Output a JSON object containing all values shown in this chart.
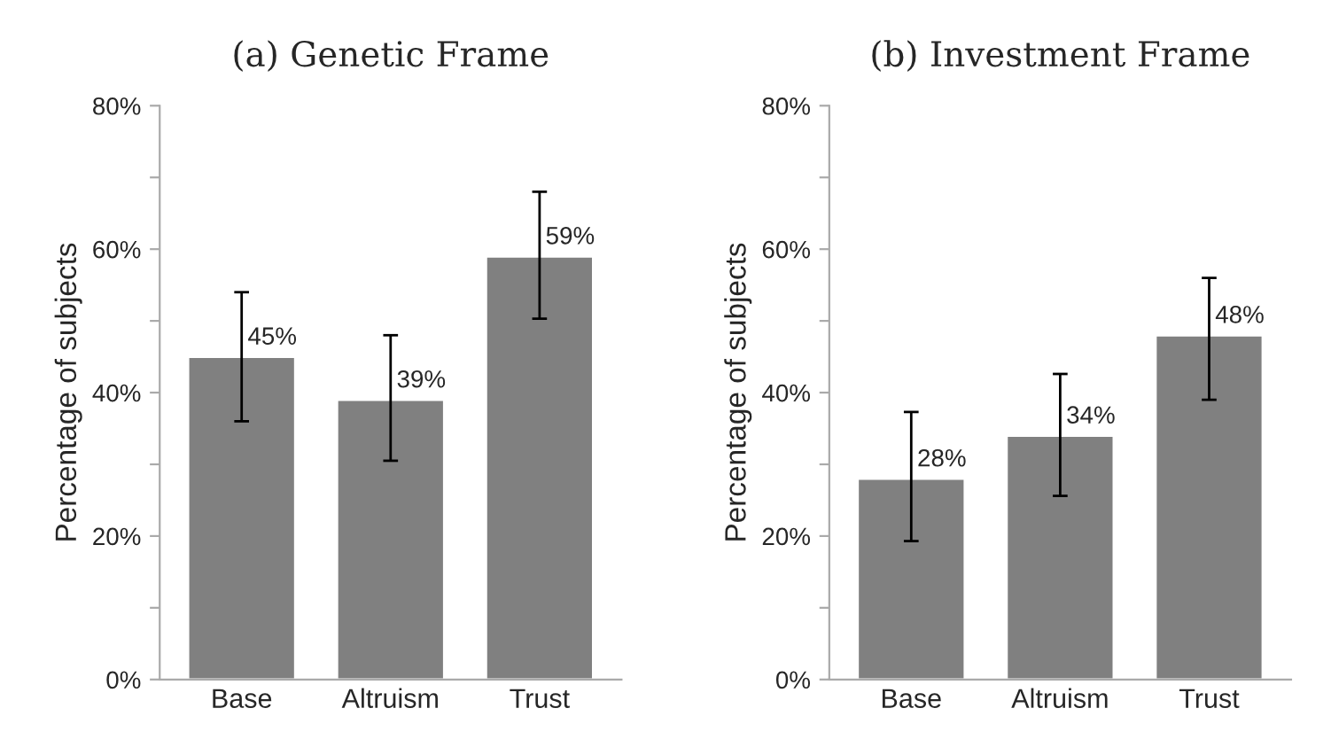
{
  "chart_data": [
    {
      "type": "bar",
      "title": "(a) Genetic Frame",
      "ylabel": "Percentage of subjects",
      "categories": [
        "Base",
        "Altruism",
        "Trust"
      ],
      "color": "#808080",
      "values": [
        45,
        39,
        59
      ],
      "errors": [
        [
          36,
          54
        ],
        [
          30.5,
          48
        ],
        [
          50.3,
          68
        ]
      ],
      "value_labels": [
        "45%",
        "39%",
        "59%"
      ],
      "ylim": [
        0,
        80
      ],
      "yticks": [
        {
          "value": 0,
          "label": "0%"
        },
        {
          "value": 10,
          "label": null
        },
        {
          "value": 20,
          "label": "20%"
        },
        {
          "value": 30,
          "label": null
        },
        {
          "value": 40,
          "label": "40%"
        },
        {
          "value": 50,
          "label": null
        },
        {
          "value": 60,
          "label": "60%"
        },
        {
          "value": 70,
          "label": null
        },
        {
          "value": 80,
          "label": "80%"
        }
      ],
      "grid": false,
      "legend": false
    },
    {
      "type": "bar",
      "title": "(b) Investment Frame",
      "ylabel": "Percentage of subjects",
      "categories": [
        "Base",
        "Altruism",
        "Trust"
      ],
      "color": "#808080",
      "values": [
        28,
        34,
        48
      ],
      "errors": [
        [
          19.3,
          37.3
        ],
        [
          25.6,
          42.6
        ],
        [
          39,
          56
        ]
      ],
      "value_labels": [
        "28%",
        "34%",
        "48%"
      ],
      "ylim": [
        0,
        80
      ],
      "yticks": [
        {
          "value": 0,
          "label": "0%"
        },
        {
          "value": 10,
          "label": null
        },
        {
          "value": 20,
          "label": "20%"
        },
        {
          "value": 30,
          "label": null
        },
        {
          "value": 40,
          "label": "40%"
        },
        {
          "value": 50,
          "label": null
        },
        {
          "value": 60,
          "label": "60%"
        },
        {
          "value": 70,
          "label": null
        },
        {
          "value": 80,
          "label": "80%"
        }
      ],
      "grid": false,
      "legend": false
    }
  ]
}
